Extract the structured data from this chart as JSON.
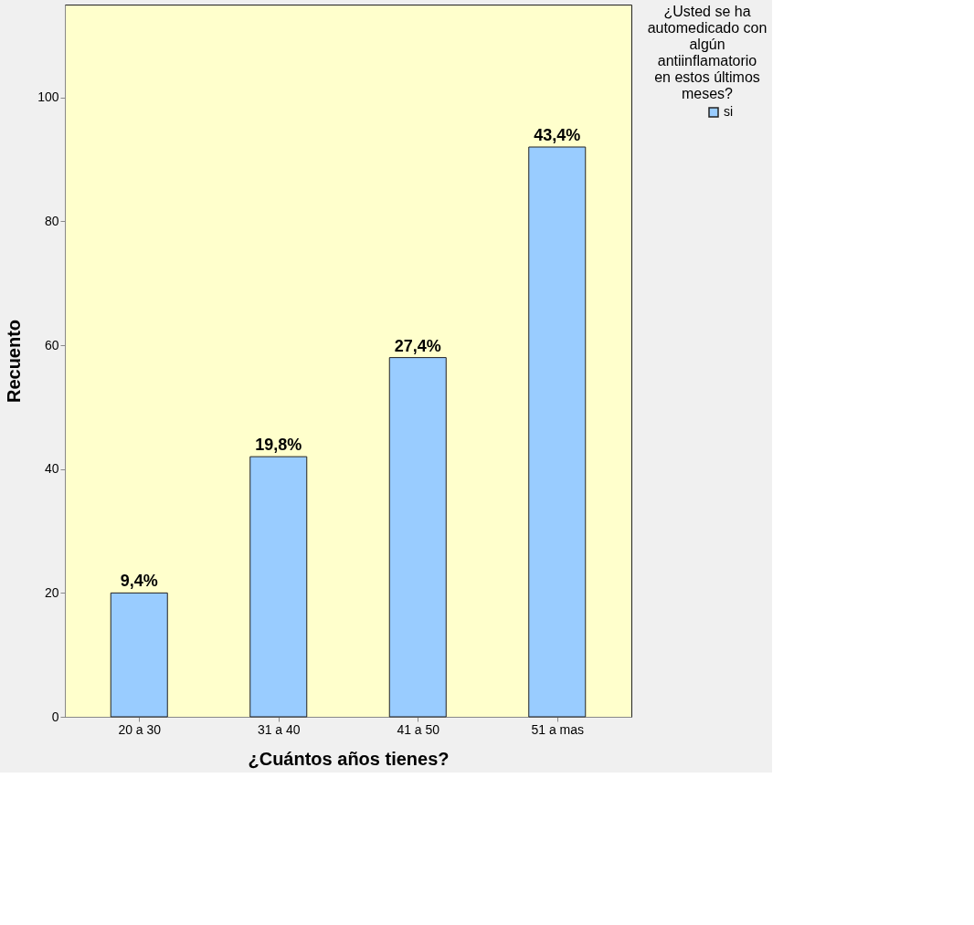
{
  "chart_data": {
    "type": "bar",
    "xlabel": "¿Cuántos años tienes?",
    "ylabel": "Recuento",
    "legend_title": "¿Usted se ha automedicado con algún antiinflamatorio en estos últimos meses?",
    "categories": [
      "20 a 30",
      "31 a 40",
      "41 a 50",
      "51 a mas"
    ],
    "series": [
      {
        "name": "si",
        "color": "#99ccff",
        "values": [
          20,
          42,
          58,
          92
        ]
      }
    ],
    "annotations": [
      {
        "text": "9,4%",
        "x": "20 a 30",
        "y": 20
      },
      {
        "text": "19,8%",
        "x": "31 a 40",
        "y": 42
      },
      {
        "text": "27,4%",
        "x": "41 a 50",
        "y": 58
      },
      {
        "text": "43,4%",
        "x": "51 a mas",
        "y": 92
      }
    ],
    "ylim": [
      0,
      115
    ],
    "yticks": [
      0,
      20,
      40,
      60,
      80,
      100
    ],
    "grid": false,
    "legend": "top right"
  }
}
